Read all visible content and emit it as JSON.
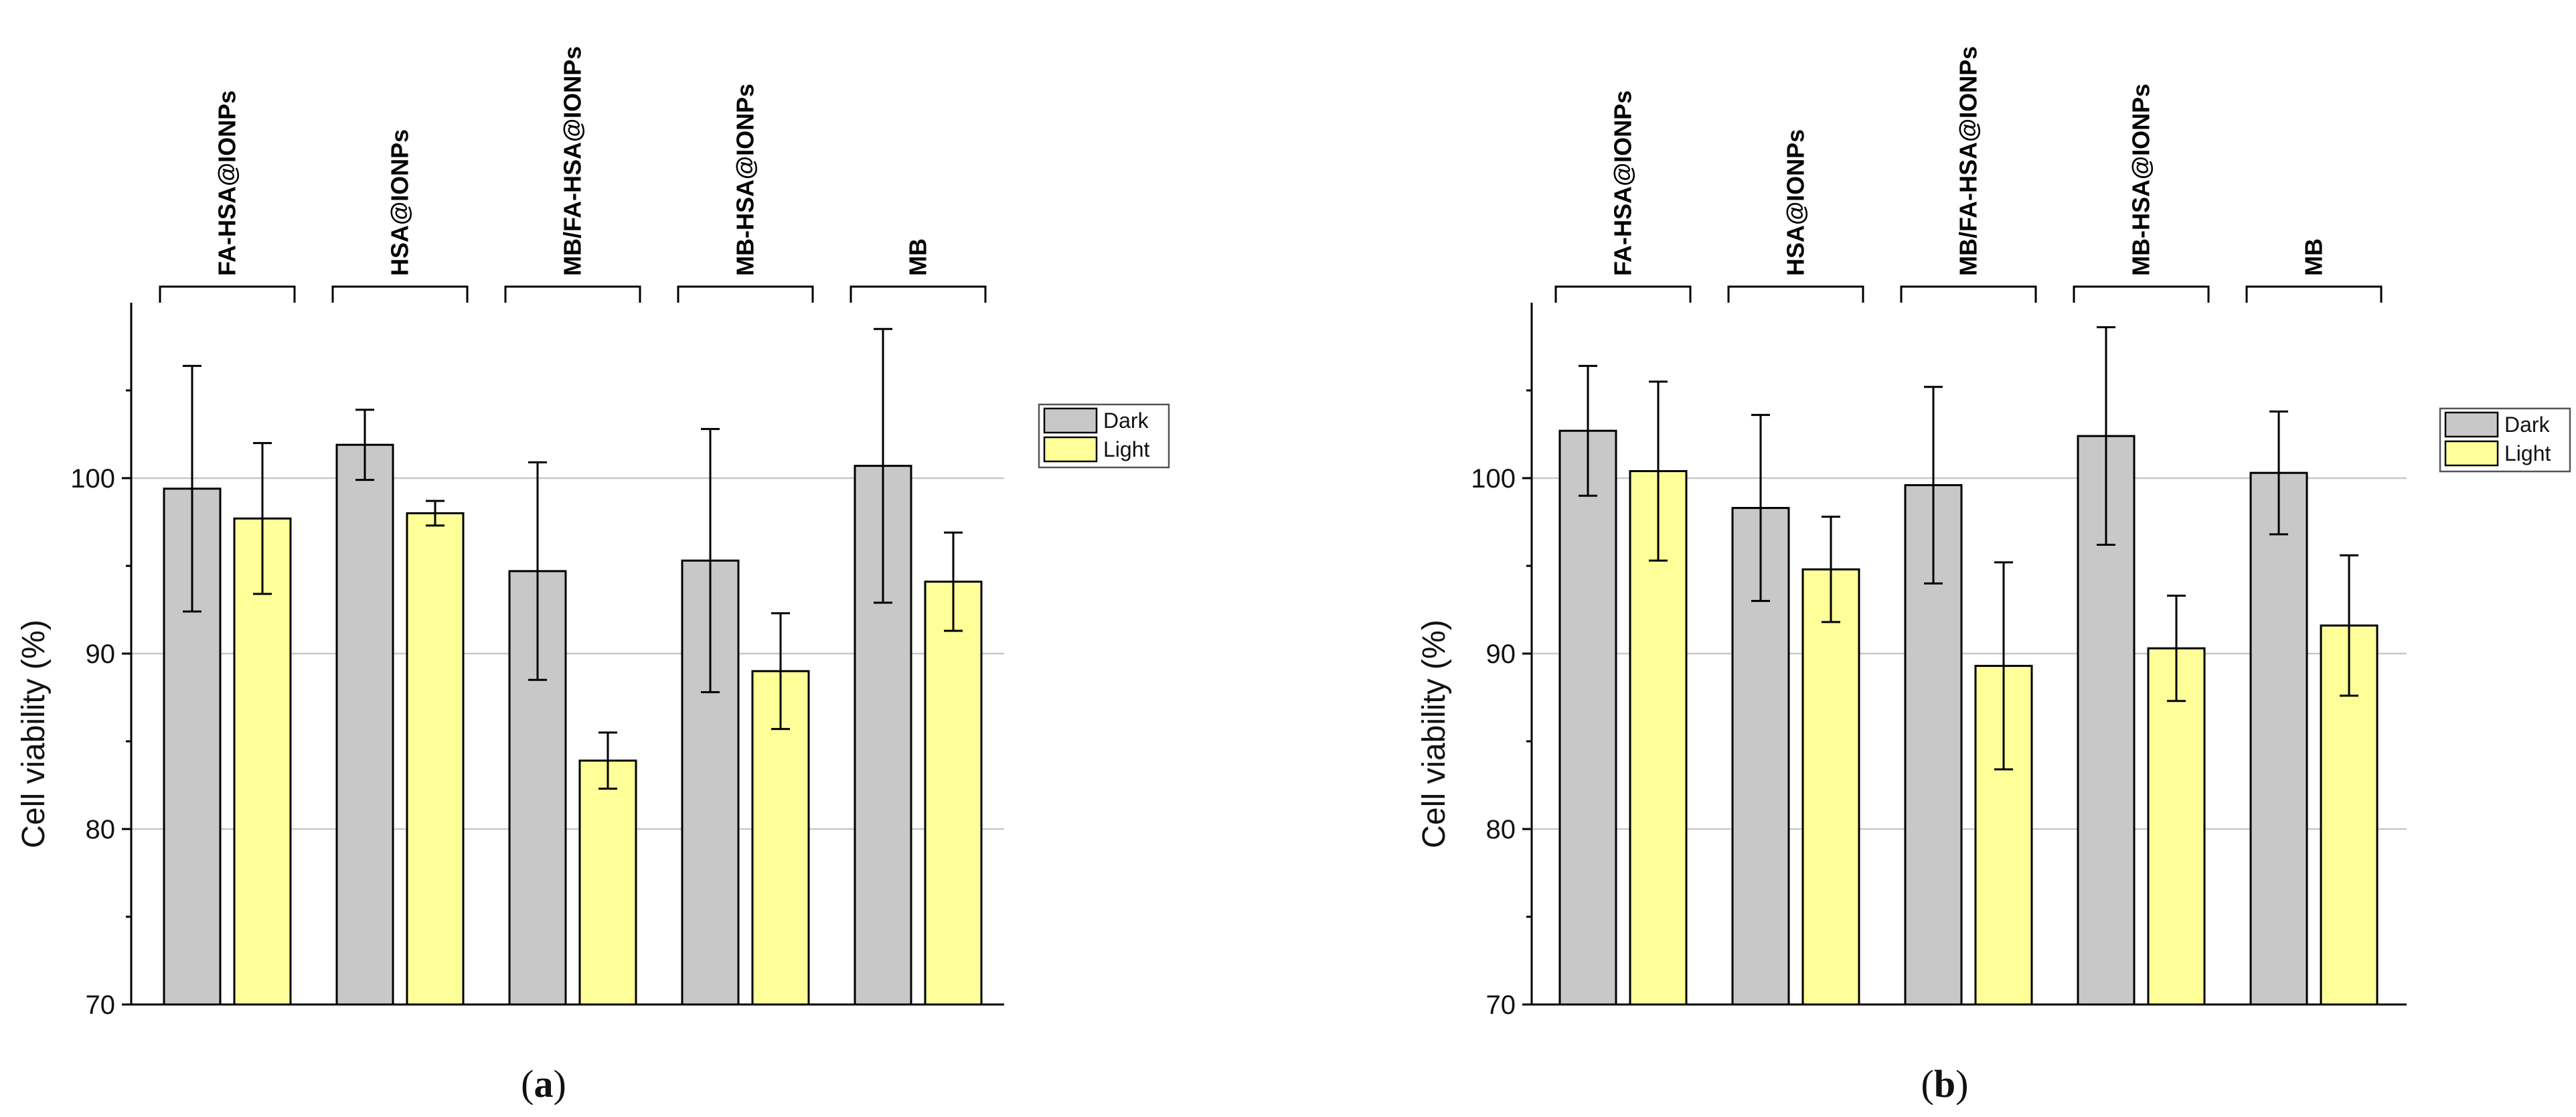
{
  "colors": {
    "dark": "#c8c8c8",
    "light": "#ffff99"
  },
  "chart_data": [
    {
      "type": "bar",
      "caption_open": "(",
      "caption_letter": "a",
      "caption_close": ")",
      "ylabel": "Cell viability (%)",
      "ylim": [
        70,
        110
      ],
      "yticks": [
        70,
        80,
        90,
        100
      ],
      "gridlines": [
        80,
        90,
        100
      ],
      "categories": [
        "FA-HSA@IONPs",
        "HSA@IONPs",
        "MB/FA-HSA@IONPs",
        "MB-HSA@IONPs",
        "MB"
      ],
      "series": [
        {
          "name": "Dark",
          "values": [
            99.4,
            101.9,
            94.7,
            95.3,
            100.7
          ],
          "errors": [
            7.0,
            2.0,
            6.2,
            7.5,
            7.8
          ]
        },
        {
          "name": "Light",
          "values": [
            97.7,
            98.0,
            83.9,
            89.0,
            94.1
          ],
          "errors": [
            4.3,
            0.7,
            1.6,
            3.3,
            2.8
          ]
        }
      ],
      "legend": [
        "Dark",
        "Light"
      ]
    },
    {
      "type": "bar",
      "caption_open": "(",
      "caption_letter": "b",
      "caption_close": ")",
      "ylabel": "Cell viability (%)",
      "ylim": [
        70,
        110
      ],
      "yticks": [
        70,
        80,
        90,
        100
      ],
      "gridlines": [
        80,
        90,
        100
      ],
      "categories": [
        "FA-HSA@IONPs",
        "HSA@IONPs",
        "MB/FA-HSA@IONPs",
        "MB-HSA@IONPs",
        "MB"
      ],
      "series": [
        {
          "name": "Dark",
          "values": [
            102.7,
            98.3,
            99.6,
            102.4,
            100.3
          ],
          "errors": [
            3.7,
            5.3,
            5.6,
            6.2,
            3.5
          ]
        },
        {
          "name": "Light",
          "values": [
            100.4,
            94.8,
            89.3,
            90.3,
            91.6
          ],
          "errors": [
            5.1,
            3.0,
            5.9,
            3.0,
            4.0
          ]
        }
      ],
      "legend": [
        "Dark",
        "Light"
      ]
    }
  ]
}
